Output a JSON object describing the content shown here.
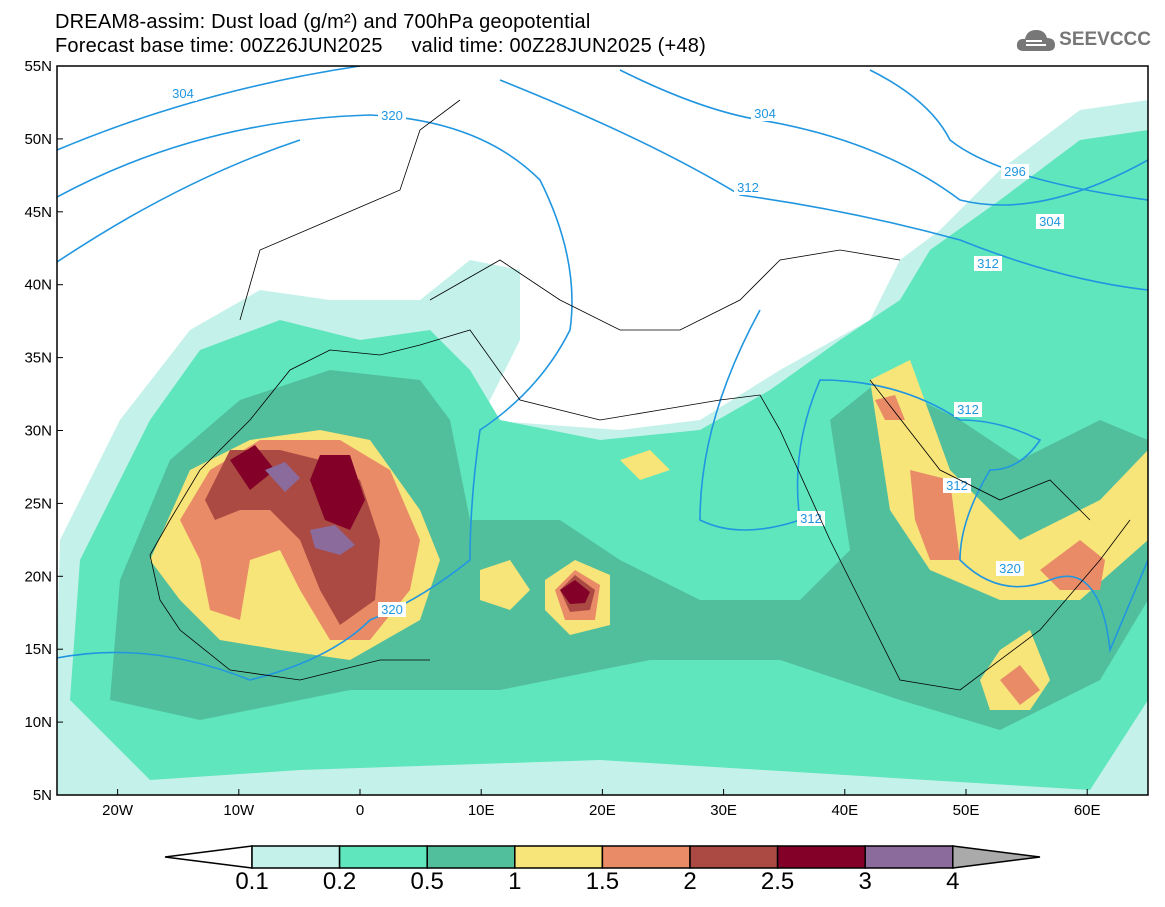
{
  "header": {
    "title": "DREAM8-assim: Dust load (g/m²) and 700hPa geopotential",
    "subtitle": "Forecast base time: 00Z26JUN2025     valid time: 00Z28JUN2025 (+48)",
    "logo_text": "SEEVCCC"
  },
  "map": {
    "lat_labels": [
      "55N",
      "50N",
      "45N",
      "40N",
      "35N",
      "30N",
      "25N",
      "20N",
      "15N",
      "10N",
      "5N"
    ],
    "lon_labels": [
      "20W",
      "10W",
      "0",
      "10E",
      "20E",
      "30E",
      "40E",
      "50E",
      "60E"
    ],
    "contour_labels": [
      "304",
      "320",
      "304",
      "312",
      "296",
      "304",
      "312",
      "312",
      "312",
      "312",
      "320",
      "320"
    ]
  },
  "colorbar": {
    "levels": [
      "0.1",
      "0.2",
      "0.5",
      "1",
      "1.5",
      "2",
      "2.5",
      "3",
      "4"
    ],
    "colors": [
      "#c4f2ea",
      "#5fe6bd",
      "#52bf9c",
      "#f7e57a",
      "#ea8b68",
      "#ab4a42",
      "#830028",
      "#8b6a9c"
    ],
    "over_color": "#aaaaaa",
    "under_color": "#ffffff"
  }
}
